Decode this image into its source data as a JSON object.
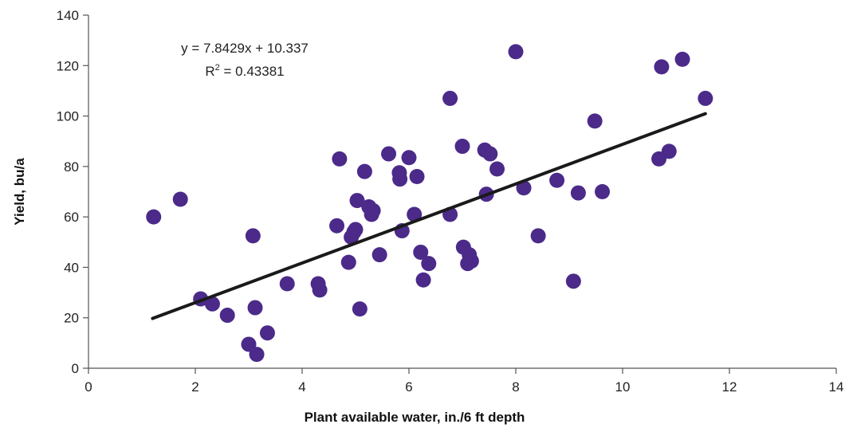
{
  "chart_data": {
    "type": "scatter",
    "title": "",
    "xlabel": "Plant available water, in./6 ft depth",
    "ylabel": "Yield, bu/a",
    "xlim": [
      0,
      14
    ],
    "ylim": [
      0,
      140
    ],
    "xticks": [
      "0",
      "2",
      "4",
      "6",
      "8",
      "10",
      "12",
      "14"
    ],
    "yticks": [
      "0",
      "20",
      "40",
      "60",
      "80",
      "100",
      "120",
      "140"
    ],
    "grid": false,
    "legend": "none",
    "marker_color": "#4b2a8a",
    "trendline_color": "#1a1a1a",
    "trendline": {
      "equation": "y = 7.8429x + 10.337",
      "r2_prefix": "R",
      "r2_sup": "2",
      "r2_suffix": " = 0.43381",
      "slope": 7.8429,
      "intercept": 10.337,
      "x_range": [
        1.2,
        11.55
      ]
    },
    "points": [
      {
        "x": 1.22,
        "y": 60
      },
      {
        "x": 1.72,
        "y": 67
      },
      {
        "x": 2.1,
        "y": 27.5
      },
      {
        "x": 2.32,
        "y": 25.5
      },
      {
        "x": 2.6,
        "y": 21
      },
      {
        "x": 3.0,
        "y": 9.5
      },
      {
        "x": 3.08,
        "y": 52.5
      },
      {
        "x": 3.12,
        "y": 24
      },
      {
        "x": 3.15,
        "y": 5.5
      },
      {
        "x": 3.35,
        "y": 14
      },
      {
        "x": 3.72,
        "y": 33.5
      },
      {
        "x": 4.3,
        "y": 33.5
      },
      {
        "x": 4.33,
        "y": 31
      },
      {
        "x": 4.65,
        "y": 56.5
      },
      {
        "x": 4.7,
        "y": 83
      },
      {
        "x": 4.87,
        "y": 42
      },
      {
        "x": 4.92,
        "y": 52
      },
      {
        "x": 4.97,
        "y": 54
      },
      {
        "x": 5.0,
        "y": 55
      },
      {
        "x": 5.03,
        "y": 66.5
      },
      {
        "x": 5.08,
        "y": 23.5
      },
      {
        "x": 5.17,
        "y": 78
      },
      {
        "x": 5.25,
        "y": 64
      },
      {
        "x": 5.3,
        "y": 61
      },
      {
        "x": 5.33,
        "y": 62.5
      },
      {
        "x": 5.45,
        "y": 45
      },
      {
        "x": 5.62,
        "y": 85
      },
      {
        "x": 5.82,
        "y": 77.5
      },
      {
        "x": 5.83,
        "y": 75
      },
      {
        "x": 5.87,
        "y": 54.5
      },
      {
        "x": 6.0,
        "y": 83.5
      },
      {
        "x": 6.1,
        "y": 61
      },
      {
        "x": 6.15,
        "y": 76
      },
      {
        "x": 6.22,
        "y": 46
      },
      {
        "x": 6.27,
        "y": 35
      },
      {
        "x": 6.37,
        "y": 41.5
      },
      {
        "x": 6.77,
        "y": 107
      },
      {
        "x": 6.77,
        "y": 61
      },
      {
        "x": 7.0,
        "y": 88
      },
      {
        "x": 7.02,
        "y": 48
      },
      {
        "x": 7.1,
        "y": 41.5
      },
      {
        "x": 7.13,
        "y": 45
      },
      {
        "x": 7.17,
        "y": 42.5
      },
      {
        "x": 7.42,
        "y": 86.5
      },
      {
        "x": 7.45,
        "y": 69
      },
      {
        "x": 7.52,
        "y": 85
      },
      {
        "x": 7.65,
        "y": 79
      },
      {
        "x": 8.0,
        "y": 125.5
      },
      {
        "x": 8.15,
        "y": 71.5
      },
      {
        "x": 8.42,
        "y": 52.5
      },
      {
        "x": 8.77,
        "y": 74.5
      },
      {
        "x": 9.08,
        "y": 34.5
      },
      {
        "x": 9.17,
        "y": 69.5
      },
      {
        "x": 9.48,
        "y": 98
      },
      {
        "x": 9.62,
        "y": 70
      },
      {
        "x": 10.68,
        "y": 83
      },
      {
        "x": 10.73,
        "y": 119.5
      },
      {
        "x": 10.87,
        "y": 86
      },
      {
        "x": 11.12,
        "y": 122.5
      },
      {
        "x": 11.55,
        "y": 107
      }
    ]
  }
}
